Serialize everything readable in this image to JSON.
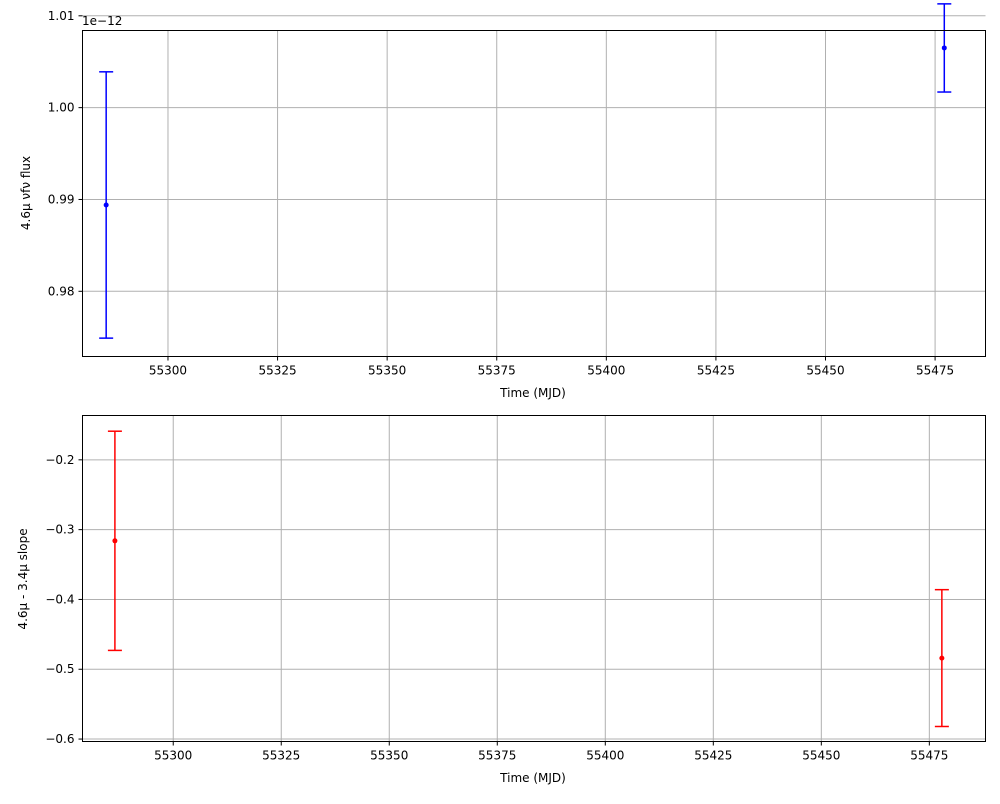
{
  "chart_data": [
    {
      "type": "scatter",
      "title": "",
      "xlabel": "Time (MJD)",
      "ylabel": "4.6μ νfν flux",
      "offset_text": "1e−12",
      "scale": 1e-12,
      "xlim": [
        55280.5,
        55486.5
      ],
      "ylim": [
        0.9729,
        1.0084
      ],
      "x_ticks": [
        55300,
        55325,
        55350,
        55375,
        55400,
        55425,
        55450,
        55475
      ],
      "x_tick_labels": [
        "55300",
        "55325",
        "55350",
        "55375",
        "55400",
        "55425",
        "55450",
        "55475"
      ],
      "y_ticks": [
        0.98,
        0.99,
        1.0,
        1.01
      ],
      "y_tick_labels": [
        "0.98",
        "0.99",
        "1.00",
        "1.01"
      ],
      "grid": true,
      "color": "#0000ff",
      "series": [
        {
          "x": [
            55285.9,
            55477.1
          ],
          "y": [
            0.9894,
            1.0065
          ],
          "yerr": [
            0.0145,
            0.0048
          ]
        }
      ]
    },
    {
      "type": "scatter",
      "title": "",
      "xlabel": "Time (MJD)",
      "ylabel": "4.6μ - 3.4μ slope",
      "xlim": [
        55279.0,
        55488.0
      ],
      "ylim": [
        -0.6035,
        -0.1365
      ],
      "x_ticks": [
        55300,
        55325,
        55350,
        55375,
        55400,
        55425,
        55450,
        55475
      ],
      "x_tick_labels": [
        "55300",
        "55325",
        "55350",
        "55375",
        "55400",
        "55425",
        "55450",
        "55475"
      ],
      "y_ticks": [
        -0.6,
        -0.5,
        -0.4,
        -0.3,
        -0.2
      ],
      "y_tick_labels": [
        "−0.6",
        "−0.5",
        "−0.4",
        "−0.3",
        "−0.2"
      ],
      "grid": true,
      "color": "#ff0000",
      "series": [
        {
          "x": [
            55286.5,
            55477.9
          ],
          "y": [
            -0.316,
            -0.484
          ],
          "yerr": [
            0.157,
            0.098
          ]
        }
      ]
    }
  ]
}
